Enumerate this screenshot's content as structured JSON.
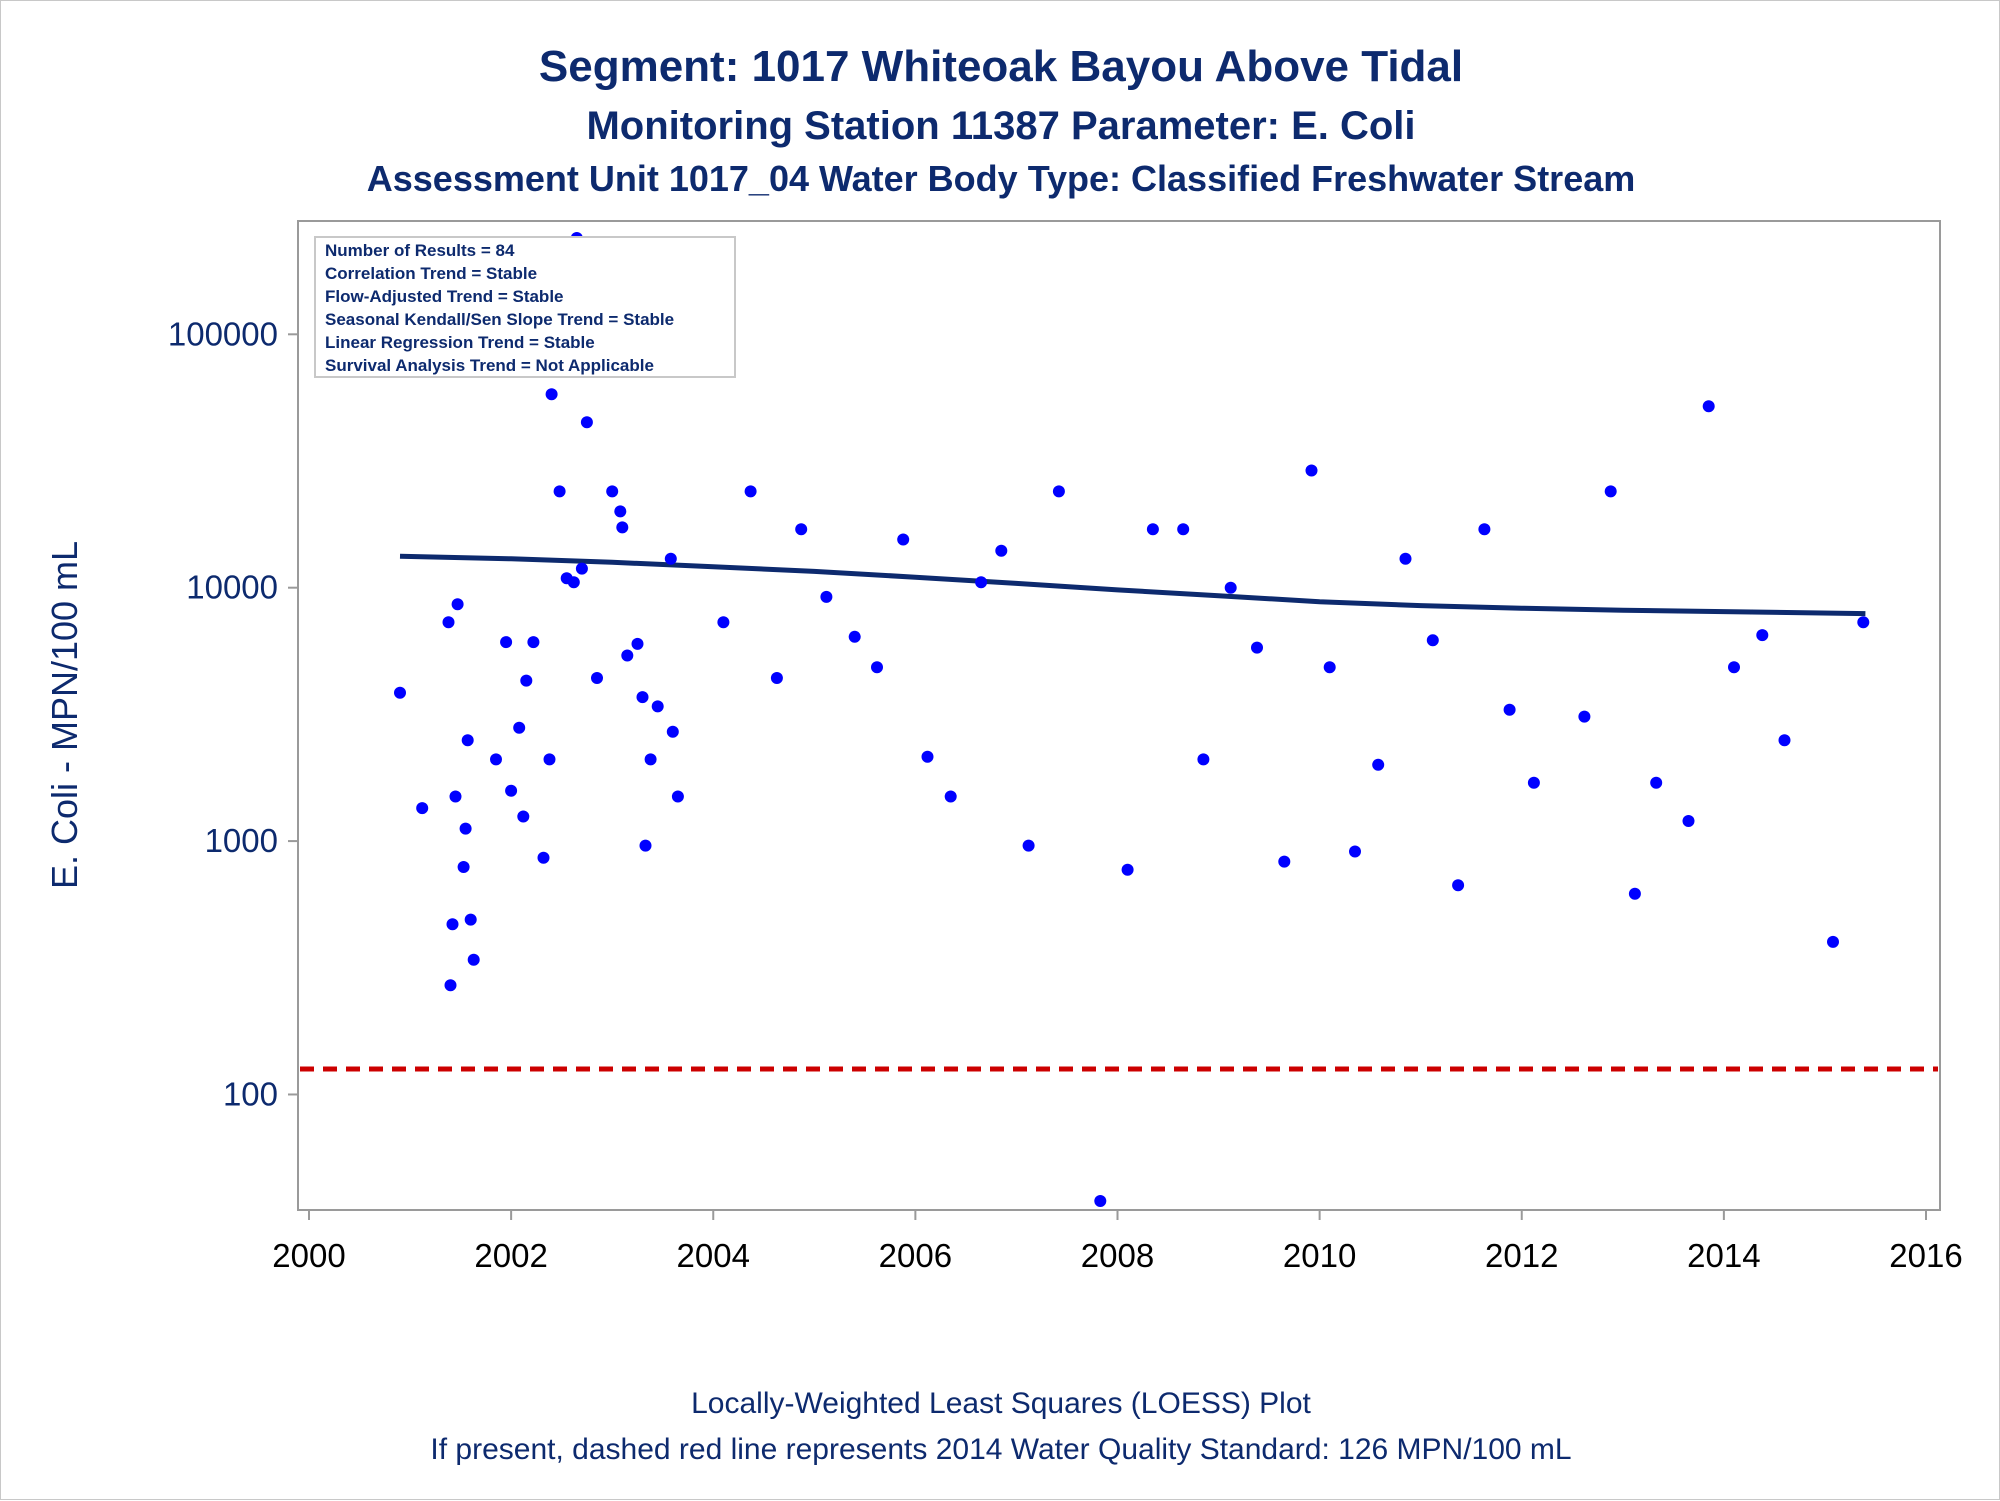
{
  "chart_data": {
    "type": "scatter",
    "title": "Segment: 1017  Whiteoak Bayou Above Tidal",
    "subtitle1": "Monitoring Station 11387 Parameter: E. Coli",
    "subtitle2": "Assessment Unit 1017_04   Water Body Type: Classified Freshwater Stream",
    "ylabel": "E. Coli - MPN/100 mL",
    "footnote1": "Locally-Weighted Least Squares (LOESS) Plot",
    "footnote2": "If present, dashed red line represents 2014 Water Quality Standard: 126 MPN/100 mL",
    "y_scale": "log",
    "xlim": [
      2000,
      2016
    ],
    "ylim": [
      35,
      280000
    ],
    "x_ticks": [
      "2000",
      "2002",
      "2004",
      "2006",
      "2008",
      "2010",
      "2012",
      "2014",
      "2016"
    ],
    "y_ticks": [
      "100",
      "1000",
      "10000",
      "100000"
    ],
    "stats_box": [
      "Number of Results = 84",
      "Correlation Trend = Stable",
      "Flow-Adjusted Trend = Stable",
      "Seasonal Kendall/Sen Slope Trend = Stable",
      "Linear Regression Trend = Stable",
      "Survival Analysis Trend = Not Applicable"
    ],
    "standard_line": {
      "value": 126,
      "color": "#cc0000",
      "style": "dashed"
    },
    "point_color": "#0000ff",
    "loess_color": "#0d2a6e",
    "loess": [
      [
        2000.9,
        13300
      ],
      [
        2002.0,
        13000
      ],
      [
        2003.0,
        12600
      ],
      [
        2004.0,
        12100
      ],
      [
        2005.0,
        11600
      ],
      [
        2006.0,
        11000
      ],
      [
        2007.0,
        10400
      ],
      [
        2008.0,
        9800
      ],
      [
        2009.0,
        9300
      ],
      [
        2010.0,
        8800
      ],
      [
        2011.0,
        8500
      ],
      [
        2012.0,
        8300
      ],
      [
        2013.0,
        8150
      ],
      [
        2014.0,
        8050
      ],
      [
        2015.4,
        7900
      ]
    ],
    "points": [
      [
        2000.9,
        3850
      ],
      [
        2001.12,
        1350
      ],
      [
        2001.38,
        7300
      ],
      [
        2001.4,
        270
      ],
      [
        2001.42,
        470
      ],
      [
        2001.45,
        1500
      ],
      [
        2001.47,
        8600
      ],
      [
        2001.53,
        790
      ],
      [
        2001.55,
        1120
      ],
      [
        2001.57,
        2500
      ],
      [
        2001.6,
        490
      ],
      [
        2001.63,
        340
      ],
      [
        2001.85,
        2100
      ],
      [
        2001.95,
        6100
      ],
      [
        2002.0,
        1580
      ],
      [
        2002.08,
        2800
      ],
      [
        2002.12,
        1250
      ],
      [
        2002.15,
        4300
      ],
      [
        2002.22,
        6100
      ],
      [
        2002.32,
        860
      ],
      [
        2002.38,
        2100
      ],
      [
        2002.4,
        58000
      ],
      [
        2002.48,
        24000
      ],
      [
        2002.55,
        10900
      ],
      [
        2002.62,
        10500
      ],
      [
        2002.65,
        240000
      ],
      [
        2002.7,
        11900
      ],
      [
        2002.75,
        45000
      ],
      [
        2002.85,
        4400
      ],
      [
        2003.0,
        24000
      ],
      [
        2003.08,
        20000
      ],
      [
        2003.1,
        17300
      ],
      [
        2003.15,
        5400
      ],
      [
        2003.25,
        6000
      ],
      [
        2003.3,
        3700
      ],
      [
        2003.33,
        960
      ],
      [
        2003.38,
        2100
      ],
      [
        2003.45,
        3400
      ],
      [
        2003.58,
        13000
      ],
      [
        2003.6,
        2700
      ],
      [
        2003.65,
        1500
      ],
      [
        2004.1,
        7300
      ],
      [
        2004.37,
        24000
      ],
      [
        2004.63,
        4400
      ],
      [
        2004.87,
        17000
      ],
      [
        2005.12,
        9200
      ],
      [
        2005.4,
        6400
      ],
      [
        2005.62,
        4850
      ],
      [
        2005.88,
        15500
      ],
      [
        2006.12,
        2150
      ],
      [
        2006.35,
        1500
      ],
      [
        2006.65,
        10500
      ],
      [
        2006.85,
        14000
      ],
      [
        2007.12,
        960
      ],
      [
        2007.42,
        24000
      ],
      [
        2007.83,
        38
      ],
      [
        2008.1,
        770
      ],
      [
        2008.35,
        17000
      ],
      [
        2008.65,
        17000
      ],
      [
        2008.85,
        2100
      ],
      [
        2009.12,
        10000
      ],
      [
        2009.38,
        5800
      ],
      [
        2009.65,
        830
      ],
      [
        2009.92,
        29000
      ],
      [
        2010.1,
        4850
      ],
      [
        2010.35,
        910
      ],
      [
        2010.58,
        2000
      ],
      [
        2010.85,
        13000
      ],
      [
        2011.12,
        6200
      ],
      [
        2011.37,
        670
      ],
      [
        2011.63,
        17000
      ],
      [
        2011.88,
        3300
      ],
      [
        2012.12,
        1700
      ],
      [
        2012.62,
        3100
      ],
      [
        2012.88,
        24000
      ],
      [
        2013.12,
        620
      ],
      [
        2013.33,
        1700
      ],
      [
        2013.65,
        1200
      ],
      [
        2013.85,
        52000
      ],
      [
        2014.1,
        4850
      ],
      [
        2014.38,
        6500
      ],
      [
        2014.6,
        2500
      ],
      [
        2015.08,
        400
      ],
      [
        2015.38,
        7300
      ]
    ]
  }
}
